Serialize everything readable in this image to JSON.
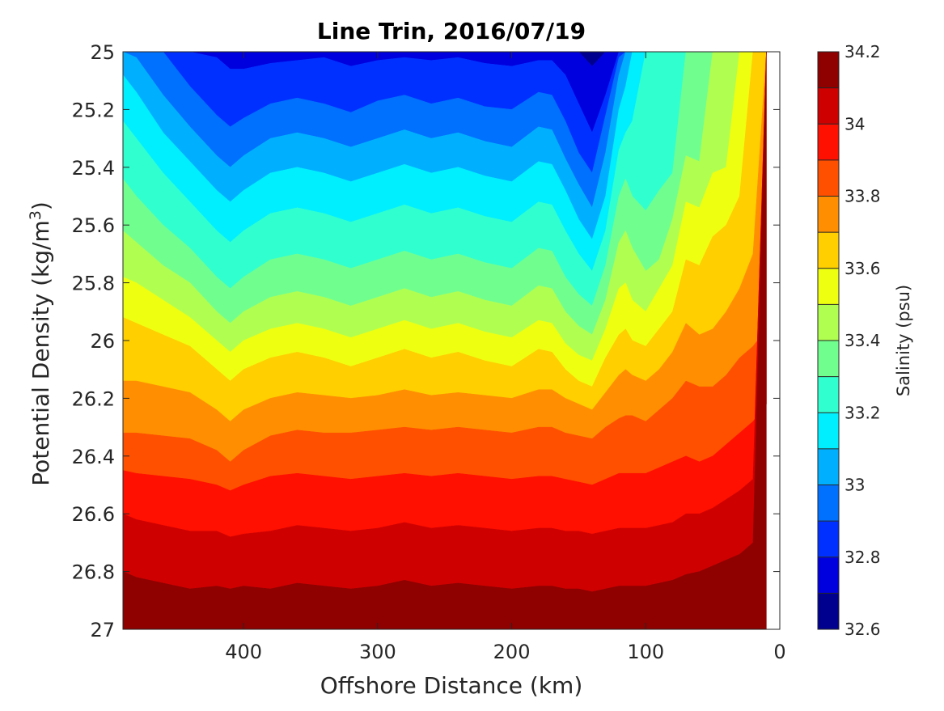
{
  "chart_data": {
    "type": "heatmap",
    "subtype": "filled-contour",
    "title": "Line Trin, 2016/07/19",
    "xlabel": "Offshore Distance (km)",
    "ylabel_main": "Potential Density (kg/m",
    "ylabel_sup": "3",
    "ylabel_close": ")",
    "x_reversed": true,
    "y_reversed": true,
    "xlim": [
      490,
      0
    ],
    "ylim": [
      25,
      27
    ],
    "x_ticks": [
      400,
      300,
      200,
      100,
      0
    ],
    "x_tick_labels": [
      "400",
      "300",
      "200",
      "100",
      "0"
    ],
    "y_ticks": [
      25,
      25.2,
      25.4,
      25.6,
      25.8,
      26,
      26.2,
      26.4,
      26.6,
      26.8,
      27
    ],
    "y_tick_labels": [
      "25",
      "25.2",
      "25.4",
      "25.6",
      "25.8",
      "26",
      "26.2",
      "26.4",
      "26.6",
      "26.8",
      "27"
    ],
    "grid": false,
    "colorbar": {
      "label": "Salinity (psu)",
      "range": [
        32.6,
        34.2
      ],
      "step": 0.1,
      "ticks": [
        32.6,
        32.8,
        33,
        33.2,
        33.4,
        33.6,
        33.8,
        34,
        34.2
      ],
      "tick_labels": [
        "32.6",
        "32.8",
        "33",
        "33.2",
        "33.4",
        "33.6",
        "33.8",
        "34",
        "34.2"
      ],
      "colors": [
        "#00008f",
        "#0000df",
        "#0030ff",
        "#0070ff",
        "#00b0ff",
        "#00efff",
        "#30ffcf",
        "#70ff8f",
        "#b0ff50",
        "#efff10",
        "#ffcf00",
        "#ff8f00",
        "#ff5000",
        "#ff1000",
        "#cf0000",
        "#8f0000"
      ]
    },
    "station_x": [
      490,
      480,
      460,
      440,
      420,
      410,
      400,
      380,
      360,
      340,
      320,
      300,
      280,
      260,
      240,
      220,
      200,
      180,
      170,
      160,
      150,
      140,
      130,
      120,
      115,
      110,
      100,
      90,
      80,
      70,
      60,
      50,
      40,
      30,
      20,
      10
    ],
    "contour_bottoms": {
      "levels": [
        32.7,
        32.8,
        32.9,
        33.0,
        33.1,
        33.2,
        33.3,
        33.4,
        33.5,
        33.6,
        33.7,
        33.8,
        33.9,
        34.0,
        34.1
      ],
      "isopycnals": [
        [
          null,
          null,
          null,
          null,
          null,
          null,
          null,
          null,
          null,
          null,
          null,
          null,
          null,
          null,
          null,
          null,
          null,
          null,
          null,
          null,
          25.0,
          25.05,
          25.0,
          null,
          null,
          null,
          null,
          null,
          null,
          null,
          null,
          null,
          null,
          null,
          null,
          null
        ],
        [
          null,
          null,
          null,
          25.0,
          25.02,
          25.06,
          25.06,
          25.04,
          25.03,
          25.02,
          25.05,
          25.03,
          25.02,
          25.03,
          25.02,
          25.04,
          25.05,
          25.03,
          25.03,
          25.08,
          25.18,
          25.28,
          25.15,
          null,
          null,
          null,
          null,
          null,
          null,
          null,
          null,
          null,
          null,
          null,
          null,
          null
        ],
        [
          null,
          null,
          25.0,
          25.12,
          25.22,
          25.26,
          25.23,
          25.18,
          25.16,
          25.18,
          25.21,
          25.17,
          25.15,
          25.18,
          25.16,
          25.19,
          25.2,
          25.14,
          25.15,
          25.24,
          25.35,
          25.42,
          25.22,
          25.02,
          null,
          null,
          null,
          null,
          null,
          null,
          null,
          null,
          null,
          null,
          null,
          null
        ],
        [
          null,
          25.02,
          25.15,
          25.26,
          25.36,
          25.4,
          25.36,
          25.3,
          25.28,
          25.3,
          25.33,
          25.3,
          25.27,
          25.3,
          25.28,
          25.31,
          25.33,
          25.26,
          25.27,
          25.37,
          25.46,
          25.54,
          25.35,
          25.08,
          null,
          null,
          null,
          null,
          null,
          null,
          null,
          null,
          null,
          null,
          null,
          null
        ],
        [
          25.08,
          25.14,
          25.28,
          25.38,
          25.48,
          25.52,
          25.48,
          25.42,
          25.4,
          25.42,
          25.45,
          25.42,
          25.39,
          25.42,
          25.4,
          25.43,
          25.45,
          25.38,
          25.39,
          25.48,
          25.58,
          25.65,
          25.5,
          25.2,
          25.12,
          null,
          null,
          null,
          null,
          null,
          null,
          null,
          null,
          null,
          null,
          null
        ],
        [
          25.24,
          25.3,
          25.42,
          25.52,
          25.62,
          25.66,
          25.62,
          25.56,
          25.54,
          25.56,
          25.59,
          25.56,
          25.53,
          25.56,
          25.54,
          25.57,
          25.59,
          25.52,
          25.53,
          25.62,
          25.7,
          25.76,
          25.62,
          25.34,
          25.28,
          25.24,
          null,
          null,
          null,
          null,
          null,
          null,
          null,
          null,
          null,
          null
        ],
        [
          25.44,
          25.5,
          25.6,
          25.68,
          25.78,
          25.82,
          25.78,
          25.72,
          25.7,
          25.72,
          25.75,
          25.72,
          25.69,
          25.72,
          25.7,
          25.73,
          25.75,
          25.68,
          25.69,
          25.78,
          25.84,
          25.88,
          25.74,
          25.5,
          25.44,
          25.5,
          25.55,
          25.48,
          25.42,
          null,
          null,
          null,
          null,
          null,
          null,
          null
        ],
        [
          25.62,
          25.66,
          25.74,
          25.8,
          25.9,
          25.94,
          25.9,
          25.85,
          25.83,
          25.85,
          25.88,
          25.85,
          25.82,
          25.85,
          25.83,
          25.86,
          25.88,
          25.81,
          25.82,
          25.9,
          25.95,
          25.98,
          25.86,
          25.66,
          25.62,
          25.68,
          25.76,
          25.72,
          25.58,
          25.36,
          25.38,
          null,
          null,
          null,
          null,
          null
        ],
        [
          25.78,
          25.8,
          25.86,
          25.92,
          26.0,
          26.04,
          26.0,
          25.96,
          25.94,
          25.96,
          25.99,
          25.96,
          25.93,
          25.96,
          25.94,
          25.97,
          25.99,
          25.93,
          25.94,
          26.01,
          26.05,
          26.07,
          25.96,
          25.82,
          25.8,
          25.86,
          25.9,
          25.82,
          25.74,
          25.52,
          25.54,
          25.42,
          25.4,
          null,
          null,
          null
        ],
        [
          25.92,
          25.94,
          25.98,
          26.02,
          26.1,
          26.14,
          26.1,
          26.06,
          26.04,
          26.06,
          26.09,
          26.06,
          26.03,
          26.06,
          26.04,
          26.07,
          26.09,
          26.03,
          26.04,
          26.1,
          26.14,
          26.16,
          26.06,
          25.98,
          25.96,
          26.0,
          26.02,
          25.96,
          25.9,
          25.72,
          25.74,
          25.64,
          25.6,
          25.5,
          null,
          null
        ],
        [
          26.14,
          26.14,
          26.16,
          26.18,
          26.24,
          26.28,
          26.24,
          26.2,
          26.18,
          26.19,
          26.2,
          26.19,
          26.17,
          26.19,
          26.18,
          26.19,
          26.2,
          26.17,
          26.17,
          26.2,
          26.22,
          26.24,
          26.18,
          26.12,
          26.1,
          26.12,
          26.14,
          26.1,
          26.04,
          25.94,
          25.98,
          25.96,
          25.9,
          25.82,
          25.7,
          null
        ],
        [
          26.32,
          26.32,
          26.33,
          26.34,
          26.38,
          26.42,
          26.38,
          26.33,
          26.31,
          26.32,
          26.32,
          26.31,
          26.3,
          26.31,
          26.3,
          26.31,
          26.32,
          26.3,
          26.3,
          26.32,
          26.33,
          26.34,
          26.3,
          26.27,
          26.26,
          26.26,
          26.28,
          26.24,
          26.2,
          26.14,
          26.16,
          26.16,
          26.12,
          26.06,
          26.02,
          25.96
        ],
        [
          26.45,
          26.46,
          26.47,
          26.48,
          26.5,
          26.52,
          26.5,
          26.47,
          26.46,
          26.47,
          26.48,
          26.47,
          26.46,
          26.47,
          26.46,
          26.47,
          26.48,
          26.47,
          26.47,
          26.48,
          26.49,
          26.5,
          26.48,
          26.46,
          26.46,
          26.46,
          26.46,
          26.44,
          26.42,
          26.4,
          26.42,
          26.4,
          26.36,
          26.32,
          26.28,
          26.22
        ],
        [
          26.6,
          26.62,
          26.64,
          26.66,
          26.66,
          26.68,
          26.67,
          26.66,
          26.64,
          26.65,
          26.66,
          26.65,
          26.63,
          26.65,
          26.64,
          26.65,
          26.66,
          26.65,
          26.65,
          26.66,
          26.66,
          26.67,
          26.66,
          26.65,
          26.65,
          26.65,
          26.65,
          26.64,
          26.63,
          26.6,
          26.6,
          26.58,
          26.55,
          26.52,
          26.48,
          null
        ],
        [
          26.8,
          26.82,
          26.84,
          26.86,
          26.85,
          26.86,
          26.85,
          26.86,
          26.84,
          26.85,
          26.86,
          26.85,
          26.83,
          26.85,
          26.84,
          26.85,
          26.86,
          26.85,
          26.85,
          26.86,
          26.86,
          26.87,
          26.86,
          26.85,
          26.85,
          26.85,
          26.85,
          26.84,
          26.83,
          26.81,
          26.8,
          26.78,
          26.76,
          26.74,
          26.7,
          null
        ]
      ]
    }
  }
}
